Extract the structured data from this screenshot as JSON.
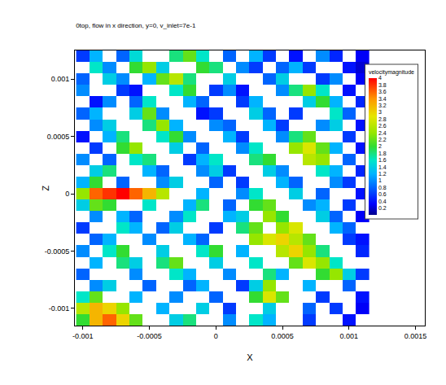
{
  "chart_data": {
    "type": "heatmap",
    "title": "0top, flow in x direction, y=0, v_inlet=7e-1",
    "x_label": "X",
    "y_label": "Z",
    "xlim": [
      -0.00106,
      0.00157
    ],
    "ylim": [
      -0.00115,
      0.00125
    ],
    "xticks": [
      -0.001,
      -0.0005,
      0,
      0.0005,
      0.001,
      0.0015
    ],
    "yticks": [
      -0.001,
      -0.0005,
      0,
      0.0005,
      0.001
    ],
    "grid": false,
    "x": [
      -0.001,
      -0.0009,
      -0.0008,
      -0.0007,
      -0.0006,
      -0.0005,
      -0.0004,
      -0.0003,
      -0.0002,
      -0.0001,
      0,
      0.0001,
      0.0002,
      0.0003,
      0.0004,
      0.0005,
      0.0006,
      0.0007,
      0.0008,
      0.0009,
      0.001,
      0.0011
    ],
    "y": [
      0.0012,
      0.0011,
      0.001,
      0.0009,
      0.0008,
      0.0007,
      0.0006,
      0.0005,
      0.0004,
      0.0003,
      0.0002,
      0.0001,
      0,
      -0.0001,
      -0.0002,
      -0.0003,
      -0.0004,
      -0.0005,
      -0.0006,
      -0.0007,
      -0.0008,
      -0.0009,
      -0.001,
      -0.0011
    ],
    "cells": [
      [
        0.6,
        1.2,
        null,
        0.8,
        1.5,
        null,
        null,
        1.8,
        2.2,
        1.6,
        null,
        0.8,
        null,
        1.2,
        0.6,
        null,
        0.4,
        null,
        1.0,
        0.5,
        null,
        0.3
      ],
      [
        null,
        1.6,
        1.0,
        null,
        2.0,
        2.4,
        1.4,
        null,
        null,
        2.0,
        1.8,
        null,
        1.0,
        0.6,
        null,
        0.8,
        1.2,
        0.6,
        null,
        null,
        0.4,
        0.2
      ],
      [
        0.8,
        null,
        1.4,
        1.0,
        null,
        1.2,
        2.2,
        2.6,
        1.8,
        null,
        null,
        1.4,
        null,
        null,
        0.8,
        1.4,
        null,
        null,
        0.6,
        1.0,
        null,
        0.3
      ],
      [
        1.0,
        null,
        null,
        0.6,
        0.4,
        null,
        null,
        1.6,
        2.0,
        null,
        0.6,
        1.0,
        0.4,
        null,
        null,
        1.0,
        1.8,
        2.4,
        1.6,
        null,
        0.4,
        null
      ],
      [
        null,
        0.4,
        1.0,
        null,
        0.8,
        1.6,
        null,
        null,
        1.2,
        0.8,
        null,
        null,
        0.6,
        1.2,
        null,
        null,
        null,
        1.4,
        2.0,
        1.2,
        null,
        0.5
      ],
      [
        0.8,
        1.2,
        null,
        null,
        1.4,
        2.2,
        1.0,
        null,
        null,
        0.4,
        0.6,
        null,
        null,
        1.4,
        0.8,
        null,
        0.6,
        null,
        null,
        1.6,
        0.8,
        null
      ],
      [
        null,
        1.0,
        1.4,
        null,
        null,
        1.8,
        2.4,
        1.2,
        null,
        null,
        1.0,
        0.8,
        null,
        null,
        1.2,
        0.6,
        null,
        null,
        1.0,
        1.4,
        null,
        0.4
      ],
      [
        0.4,
        null,
        1.2,
        1.8,
        null,
        null,
        1.6,
        2.0,
        1.0,
        null,
        null,
        1.2,
        0.6,
        null,
        null,
        1.0,
        1.8,
        2.2,
        null,
        null,
        0.6,
        null
      ],
      [
        null,
        0.6,
        null,
        2.0,
        2.4,
        null,
        null,
        1.4,
        null,
        0.8,
        null,
        null,
        1.0,
        1.6,
        null,
        null,
        2.4,
        2.8,
        2.2,
        1.2,
        null,
        0.4
      ],
      [
        1.0,
        null,
        0.8,
        null,
        1.6,
        1.8,
        null,
        null,
        0.6,
        1.2,
        1.6,
        null,
        null,
        1.8,
        2.0,
        null,
        null,
        2.6,
        2.4,
        null,
        0.8,
        null
      ],
      [
        null,
        1.4,
        1.8,
        null,
        null,
        1.2,
        0.8,
        null,
        null,
        1.0,
        1.4,
        0.6,
        null,
        null,
        1.4,
        1.0,
        null,
        null,
        1.6,
        1.2,
        null,
        0.5
      ],
      [
        1.2,
        2.0,
        null,
        0.8,
        null,
        null,
        1.0,
        1.4,
        null,
        null,
        0.8,
        null,
        0.6,
        null,
        null,
        1.2,
        0.8,
        null,
        null,
        1.0,
        0.6,
        null
      ],
      [
        2.4,
        3.6,
        3.8,
        4.0,
        3.6,
        3.2,
        2.6,
        null,
        null,
        1.2,
        null,
        null,
        1.0,
        1.6,
        null,
        null,
        1.4,
        null,
        0.8,
        null,
        null,
        0.4
      ],
      [
        1.4,
        2.2,
        2.0,
        null,
        null,
        1.6,
        null,
        null,
        1.2,
        1.8,
        null,
        0.8,
        null,
        2.0,
        2.2,
        null,
        null,
        1.0,
        1.2,
        null,
        0.6,
        null
      ],
      [
        null,
        1.0,
        null,
        1.2,
        0.8,
        null,
        null,
        1.0,
        1.6,
        null,
        null,
        1.2,
        1.4,
        null,
        2.4,
        2.0,
        null,
        null,
        1.4,
        0.8,
        null,
        0.3
      ],
      [
        0.6,
        null,
        null,
        1.6,
        1.2,
        null,
        0.8,
        1.4,
        null,
        null,
        0.6,
        null,
        1.8,
        2.2,
        null,
        2.4,
        2.8,
        null,
        null,
        1.2,
        0.8,
        null
      ],
      [
        null,
        0.8,
        1.2,
        null,
        null,
        1.0,
        null,
        null,
        1.2,
        0.8,
        null,
        null,
        null,
        2.4,
        2.8,
        3.0,
        2.6,
        2.2,
        null,
        null,
        0.6,
        0.4
      ],
      [
        1.0,
        null,
        1.6,
        2.0,
        null,
        null,
        1.4,
        null,
        null,
        1.6,
        2.0,
        null,
        1.2,
        null,
        null,
        2.6,
        3.0,
        2.4,
        1.8,
        null,
        null,
        0.5
      ],
      [
        null,
        1.2,
        null,
        1.8,
        1.4,
        null,
        1.8,
        2.2,
        null,
        null,
        1.4,
        null,
        null,
        1.6,
        null,
        null,
        2.2,
        2.8,
        2.4,
        1.6,
        null,
        null
      ],
      [
        0.8,
        null,
        null,
        null,
        1.0,
        null,
        null,
        1.6,
        1.2,
        null,
        null,
        1.0,
        null,
        null,
        1.8,
        1.2,
        null,
        null,
        2.0,
        2.4,
        1.4,
        0.6
      ],
      [
        null,
        1.0,
        1.4,
        null,
        null,
        0.8,
        null,
        null,
        0.8,
        1.2,
        null,
        null,
        0.6,
        1.4,
        2.4,
        null,
        null,
        1.2,
        null,
        null,
        0.8,
        null
      ],
      [
        1.6,
        2.2,
        null,
        null,
        1.2,
        null,
        null,
        1.0,
        null,
        null,
        0.8,
        null,
        null,
        2.0,
        2.8,
        2.2,
        null,
        null,
        0.6,
        null,
        null,
        0.4
      ],
      [
        2.6,
        3.2,
        3.0,
        2.4,
        null,
        null,
        1.2,
        null,
        null,
        1.4,
        null,
        0.6,
        null,
        null,
        1.4,
        null,
        null,
        0.8,
        null,
        0.6,
        null,
        0.3
      ],
      [
        2.0,
        3.2,
        3.6,
        3.0,
        2.2,
        null,
        null,
        1.4,
        1.8,
        null,
        null,
        1.0,
        null,
        1.6,
        1.2,
        null,
        null,
        0.6,
        null,
        null,
        0.4,
        null
      ]
    ],
    "colorbar": {
      "title": "velocitymagnitude",
      "range": [
        0,
        4
      ],
      "ticks": [
        4,
        3.8,
        3.6,
        3.4,
        3.2,
        3,
        2.8,
        2.6,
        2.4,
        2.2,
        2,
        1.8,
        1.6,
        1.4,
        1.2,
        1,
        0.8,
        0.6,
        0.4,
        0.2
      ]
    }
  }
}
